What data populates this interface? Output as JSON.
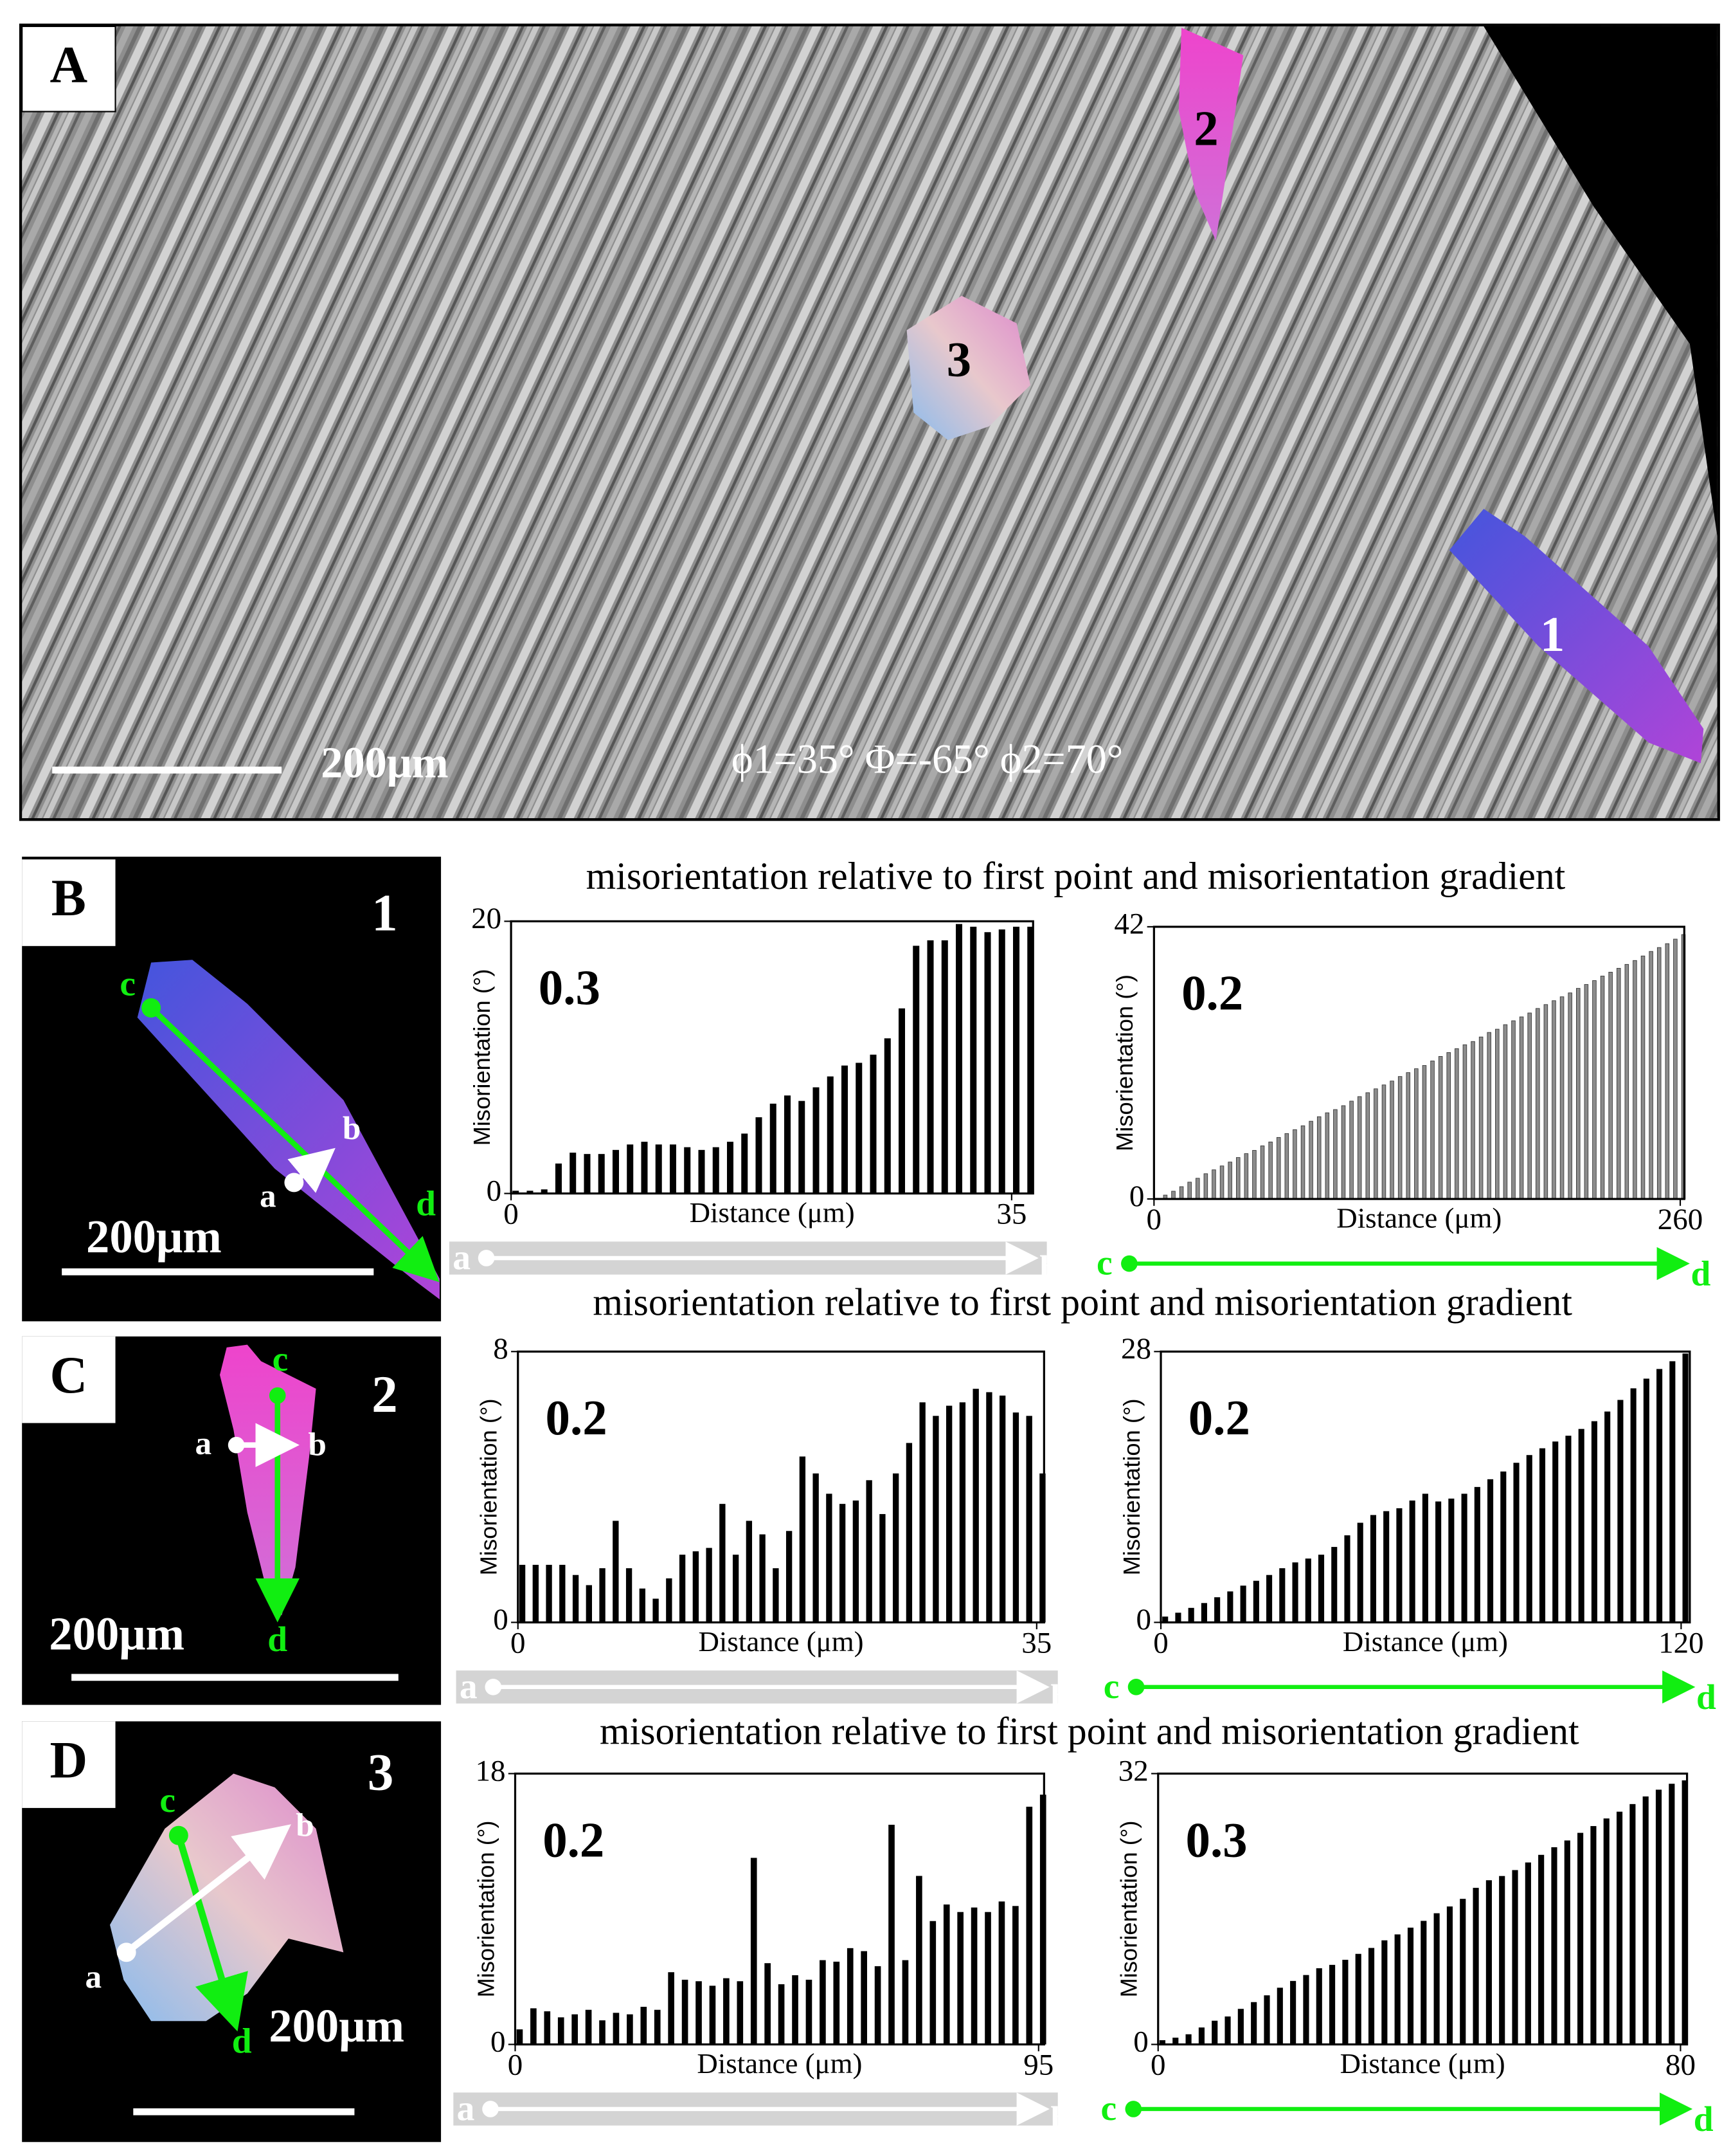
{
  "panel_a": {
    "label": "A",
    "grains": [
      "2",
      "3",
      "1"
    ],
    "scale_bar": "200μm",
    "euler": "ϕ1=35° Φ=-65° ϕ2=70°"
  },
  "panels": [
    {
      "label": "B",
      "grain": "1",
      "scale_bar": "200μm",
      "points": [
        "a",
        "b",
        "c",
        "d"
      ],
      "heading": "misorientation relative to first point and misorientation gradient"
    },
    {
      "label": "C",
      "grain": "2",
      "scale_bar": "200μm",
      "points": [
        "a",
        "b",
        "c",
        "d"
      ],
      "heading": "misorientation relative to first point and misorientation gradient"
    },
    {
      "label": "D",
      "grain": "3",
      "scale_bar": "200μm",
      "points": [
        "a",
        "b",
        "c",
        "d"
      ],
      "heading": "misorientation relative to first point and misorientation gradient"
    }
  ],
  "chart_data": [
    {
      "type": "bar",
      "annotation": "0.3",
      "x_label": "Distance (μm)",
      "y_label": "Misorientation (°)",
      "color": "#000000",
      "arrow_color": "#ffffff",
      "start": "a",
      "end": "b",
      "x": [
        0,
        1,
        2,
        3,
        4,
        5,
        6,
        7,
        8,
        9,
        10,
        11,
        12,
        13,
        14,
        15,
        16,
        17,
        18,
        19,
        20,
        21,
        22,
        23,
        24,
        25,
        26,
        27,
        28,
        29,
        30,
        31,
        32,
        33,
        34,
        35,
        36
      ],
      "values": [
        0.2,
        0.2,
        0.3,
        2.2,
        3,
        2.9,
        2.9,
        3.2,
        3.6,
        3.8,
        3.6,
        3.6,
        3.4,
        3.2,
        3.4,
        3.8,
        4.4,
        5.6,
        6.6,
        7.2,
        6.8,
        7.8,
        8.6,
        9.4,
        9.6,
        10.2,
        11.4,
        13.6,
        18.2,
        18.6,
        18.6,
        19.8,
        19.6,
        19.2,
        19.4,
        19.6,
        19.6
      ],
      "xlim": [
        0,
        36.5
      ],
      "xticks": [
        0,
        35
      ],
      "ylim": [
        0,
        20
      ],
      "yticks": [
        0,
        20
      ]
    },
    {
      "type": "bar",
      "annotation": "0.2",
      "x_label": "Distance (μm)",
      "y_label": "Misorientation (°)",
      "color": "#8c8c8c",
      "arrow_color": "#11ee11",
      "start": "c",
      "end": "d",
      "x": [
        0,
        4,
        8,
        12,
        16,
        20,
        24,
        28,
        32,
        36,
        40,
        44,
        48,
        52,
        56,
        60,
        64,
        68,
        72,
        76,
        80,
        84,
        88,
        92,
        96,
        100,
        104,
        108,
        112,
        116,
        120,
        124,
        128,
        132,
        136,
        140,
        144,
        148,
        152,
        156,
        160,
        164,
        168,
        172,
        176,
        180,
        184,
        188,
        192,
        196,
        200,
        204,
        208,
        212,
        216,
        220,
        224,
        228,
        232,
        236,
        240,
        244,
        248,
        252,
        256,
        260
      ],
      "values": [
        0,
        0.6,
        1.2,
        1.9,
        2.6,
        3.2,
        3.9,
        4.5,
        5.1,
        5.7,
        6.4,
        7.0,
        7.5,
        8.2,
        8.8,
        9.5,
        10.1,
        10.7,
        11.3,
        12.0,
        12.7,
        13.3,
        13.8,
        14.4,
        15.1,
        15.8,
        16.4,
        17.0,
        17.6,
        18.2,
        18.9,
        19.5,
        20.1,
        20.6,
        21.3,
        22.0,
        22.6,
        23.2,
        23.8,
        24.3,
        25.0,
        25.7,
        26.2,
        26.9,
        27.5,
        28.1,
        28.7,
        29.4,
        30.0,
        30.6,
        31.2,
        31.8,
        32.5,
        33.1,
        33.7,
        34.4,
        35.0,
        35.6,
        36.2,
        36.8,
        37.5,
        38.2,
        38.8,
        39.4,
        40.1,
        40.8
      ],
      "xlim": [
        0,
        262
      ],
      "xticks": [
        0,
        260
      ],
      "ylim": [
        0,
        42
      ],
      "yticks": [
        0,
        42
      ]
    },
    {
      "type": "bar",
      "annotation": "0.2",
      "x_label": "Distance (μm)",
      "y_label": "Misorientation (°)",
      "color": "#000000",
      "arrow_color": "#ffffff",
      "start": "a",
      "end": "b",
      "x": [
        0,
        0.9,
        1.8,
        2.7,
        3.6,
        4.5,
        5.4,
        6.3,
        7.2,
        8.1,
        9,
        9.9,
        10.8,
        11.7,
        12.6,
        13.5,
        14.4,
        15.3,
        16.2,
        17.1,
        18,
        18.9,
        19.8,
        20.7,
        21.6,
        22.5,
        23.4,
        24.3,
        25.2,
        26.1,
        27,
        27.9,
        28.8,
        29.7,
        30.6,
        31.5,
        32.4,
        33.3,
        34.2,
        35.1
      ],
      "values": [
        1.7,
        1.7,
        1.7,
        1.7,
        1.4,
        1.1,
        1.6,
        3.0,
        1.6,
        1.0,
        0.7,
        1.3,
        2.0,
        2.1,
        2.2,
        3.5,
        2.0,
        3.0,
        2.6,
        1.6,
        2.7,
        4.9,
        4.4,
        3.8,
        3.5,
        3.6,
        4.2,
        3.2,
        4.4,
        5.3,
        6.5,
        6.1,
        6.4,
        6.5,
        6.9,
        6.8,
        6.7,
        6.2,
        6.1,
        4.4
      ],
      "xlim": [
        0,
        35.5
      ],
      "xticks": [
        0,
        35
      ],
      "ylim": [
        0,
        8
      ],
      "yticks": [
        0,
        8
      ]
    },
    {
      "type": "bar",
      "annotation": "0.2",
      "x_label": "Distance (μm)",
      "y_label": "Misorientation (°)",
      "color": "#000000",
      "arrow_color": "#11ee11",
      "start": "c",
      "end": "d",
      "x": [
        0,
        3,
        6,
        9,
        12,
        15,
        18,
        21,
        24,
        27,
        30,
        33,
        36,
        39,
        42,
        45,
        48,
        51,
        54,
        57,
        60,
        63,
        66,
        69,
        72,
        75,
        78,
        81,
        84,
        87,
        90,
        93,
        96,
        99,
        102,
        105,
        108,
        111,
        114,
        117,
        120
      ],
      "values": [
        0.6,
        1.0,
        1.5,
        2.0,
        2.6,
        3.2,
        3.8,
        4.3,
        4.9,
        5.6,
        6.2,
        6.6,
        7.0,
        7.8,
        9.0,
        10.3,
        11.1,
        11.5,
        11.8,
        12.6,
        13.3,
        12.5,
        12.8,
        13.3,
        14.0,
        14.8,
        15.6,
        16.5,
        17.3,
        18.0,
        18.7,
        19.3,
        20.0,
        20.8,
        21.8,
        23.0,
        24.2,
        25.2,
        26.2,
        27.0,
        27.8
      ],
      "xlim": [
        0,
        122
      ],
      "xticks": [
        0,
        120
      ],
      "ylim": [
        0,
        28
      ],
      "yticks": [
        0,
        28
      ]
    },
    {
      "type": "bar",
      "annotation": "0.2",
      "x_label": "Distance (μm)",
      "y_label": "Misorientation (°)",
      "color": "#000000",
      "arrow_color": "#ffffff",
      "start": "a",
      "end": "b",
      "x": [
        0,
        2.5,
        5,
        7.5,
        10,
        12.5,
        15,
        17.5,
        20,
        22.5,
        25,
        27.5,
        30,
        32.5,
        35,
        37.5,
        40,
        42.5,
        45,
        47.5,
        50,
        52.5,
        55,
        57.5,
        60,
        62.5,
        65,
        67.5,
        70,
        72.5,
        75,
        77.5,
        80,
        82.5,
        85,
        87.5,
        90,
        92.5,
        95
      ],
      "values": [
        1.0,
        2.4,
        2.2,
        1.8,
        2.0,
        2.3,
        1.6,
        2.1,
        2.0,
        2.5,
        2.3,
        4.8,
        4.3,
        4.2,
        3.9,
        4.4,
        4.2,
        12.4,
        5.4,
        4.0,
        4.6,
        4.3,
        5.6,
        5.5,
        6.4,
        6.2,
        5.2,
        14.6,
        5.6,
        11.2,
        8.2,
        9.3,
        8.8,
        9.1,
        8.8,
        9.5,
        9.2,
        15.8,
        16.6
      ],
      "xlim": [
        0,
        96
      ],
      "xticks": [
        0,
        95
      ],
      "ylim": [
        0,
        18
      ],
      "yticks": [
        0,
        18
      ]
    },
    {
      "type": "bar",
      "annotation": "0.3",
      "x_label": "Distance (μm)",
      "y_label": "Misorientation (°)",
      "color": "#000000",
      "arrow_color": "#11ee11",
      "start": "c",
      "end": "d",
      "x": [
        0,
        2,
        4,
        6,
        8,
        10,
        12,
        14,
        16,
        18,
        20,
        22,
        24,
        26,
        28,
        30,
        32,
        34,
        36,
        38,
        40,
        42,
        44,
        46,
        48,
        50,
        52,
        54,
        56,
        58,
        60,
        62,
        64,
        66,
        68,
        70,
        72,
        74,
        76,
        78,
        80
      ],
      "values": [
        0.5,
        0.8,
        1.2,
        2.0,
        2.8,
        3.3,
        4.2,
        5.0,
        5.8,
        6.7,
        7.5,
        8.2,
        9.0,
        9.4,
        10.0,
        10.7,
        11.4,
        12.3,
        13.0,
        13.8,
        14.6,
        15.5,
        16.3,
        17.2,
        18.5,
        19.4,
        19.9,
        20.6,
        21.5,
        22.4,
        23.3,
        24.1,
        25.0,
        25.8,
        26.7,
        27.5,
        28.4,
        29.3,
        30.1,
        30.8,
        31.2
      ],
      "xlim": [
        0,
        81
      ],
      "xticks": [
        0,
        80
      ],
      "ylim": [
        0,
        32
      ],
      "yticks": [
        0,
        32
      ]
    }
  ]
}
